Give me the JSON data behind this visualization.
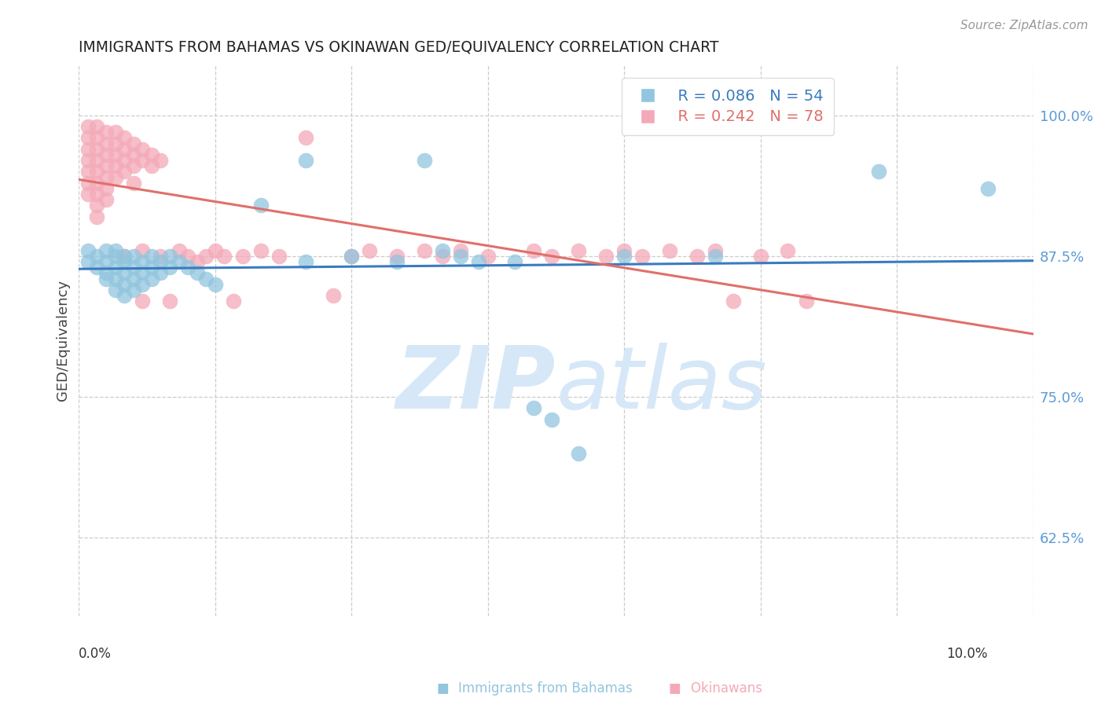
{
  "title": "IMMIGRANTS FROM BAHAMAS VS OKINAWAN GED/EQUIVALENCY CORRELATION CHART",
  "source": "Source: ZipAtlas.com",
  "ylabel": "GED/Equivalency",
  "yticks": [
    0.625,
    0.75,
    0.875,
    1.0
  ],
  "ytick_labels": [
    "62.5%",
    "75.0%",
    "87.5%",
    "100.0%"
  ],
  "xlim": [
    0.0,
    0.105
  ],
  "ylim": [
    0.555,
    1.045
  ],
  "legend_r_blue": "R = 0.086",
  "legend_n_blue": "N = 54",
  "legend_r_pink": "R = 0.242",
  "legend_n_pink": "N = 78",
  "blue_color": "#92c5de",
  "pink_color": "#f4a9b8",
  "blue_line_color": "#3a7bbf",
  "pink_line_color": "#e0706a",
  "watermark_zip": "ZIP",
  "watermark_atlas": "atlas",
  "watermark_color": "#d6e8f7",
  "axis_label_color": "#5b9bd5",
  "title_color": "#222222",
  "grid_color": "#cccccc",
  "blue_scatter": [
    [
      0.001,
      0.88
    ],
    [
      0.001,
      0.87
    ],
    [
      0.002,
      0.875
    ],
    [
      0.002,
      0.865
    ],
    [
      0.003,
      0.88
    ],
    [
      0.003,
      0.87
    ],
    [
      0.003,
      0.86
    ],
    [
      0.003,
      0.855
    ],
    [
      0.004,
      0.88
    ],
    [
      0.004,
      0.875
    ],
    [
      0.004,
      0.865
    ],
    [
      0.004,
      0.855
    ],
    [
      0.004,
      0.845
    ],
    [
      0.005,
      0.875
    ],
    [
      0.005,
      0.87
    ],
    [
      0.005,
      0.86
    ],
    [
      0.005,
      0.85
    ],
    [
      0.005,
      0.84
    ],
    [
      0.006,
      0.875
    ],
    [
      0.006,
      0.865
    ],
    [
      0.006,
      0.855
    ],
    [
      0.006,
      0.845
    ],
    [
      0.007,
      0.87
    ],
    [
      0.007,
      0.86
    ],
    [
      0.007,
      0.85
    ],
    [
      0.008,
      0.875
    ],
    [
      0.008,
      0.865
    ],
    [
      0.008,
      0.855
    ],
    [
      0.009,
      0.87
    ],
    [
      0.009,
      0.86
    ],
    [
      0.01,
      0.875
    ],
    [
      0.01,
      0.865
    ],
    [
      0.011,
      0.87
    ],
    [
      0.012,
      0.865
    ],
    [
      0.013,
      0.86
    ],
    [
      0.014,
      0.855
    ],
    [
      0.015,
      0.85
    ],
    [
      0.02,
      0.92
    ],
    [
      0.025,
      0.96
    ],
    [
      0.025,
      0.87
    ],
    [
      0.03,
      0.875
    ],
    [
      0.035,
      0.87
    ],
    [
      0.038,
      0.96
    ],
    [
      0.04,
      0.88
    ],
    [
      0.042,
      0.875
    ],
    [
      0.044,
      0.87
    ],
    [
      0.048,
      0.87
    ],
    [
      0.05,
      0.74
    ],
    [
      0.052,
      0.73
    ],
    [
      0.055,
      0.7
    ],
    [
      0.06,
      0.875
    ],
    [
      0.07,
      0.875
    ],
    [
      0.088,
      0.95
    ],
    [
      0.1,
      0.935
    ]
  ],
  "pink_scatter": [
    [
      0.001,
      0.99
    ],
    [
      0.001,
      0.98
    ],
    [
      0.001,
      0.97
    ],
    [
      0.001,
      0.96
    ],
    [
      0.001,
      0.95
    ],
    [
      0.001,
      0.94
    ],
    [
      0.001,
      0.93
    ],
    [
      0.002,
      0.99
    ],
    [
      0.002,
      0.98
    ],
    [
      0.002,
      0.97
    ],
    [
      0.002,
      0.96
    ],
    [
      0.002,
      0.95
    ],
    [
      0.002,
      0.94
    ],
    [
      0.002,
      0.93
    ],
    [
      0.002,
      0.92
    ],
    [
      0.002,
      0.91
    ],
    [
      0.003,
      0.985
    ],
    [
      0.003,
      0.975
    ],
    [
      0.003,
      0.965
    ],
    [
      0.003,
      0.955
    ],
    [
      0.003,
      0.945
    ],
    [
      0.003,
      0.935
    ],
    [
      0.003,
      0.925
    ],
    [
      0.004,
      0.985
    ],
    [
      0.004,
      0.975
    ],
    [
      0.004,
      0.965
    ],
    [
      0.004,
      0.955
    ],
    [
      0.004,
      0.945
    ],
    [
      0.005,
      0.98
    ],
    [
      0.005,
      0.97
    ],
    [
      0.005,
      0.96
    ],
    [
      0.005,
      0.95
    ],
    [
      0.005,
      0.875
    ],
    [
      0.006,
      0.975
    ],
    [
      0.006,
      0.965
    ],
    [
      0.006,
      0.955
    ],
    [
      0.006,
      0.94
    ],
    [
      0.007,
      0.97
    ],
    [
      0.007,
      0.96
    ],
    [
      0.007,
      0.88
    ],
    [
      0.007,
      0.835
    ],
    [
      0.008,
      0.965
    ],
    [
      0.008,
      0.955
    ],
    [
      0.009,
      0.96
    ],
    [
      0.009,
      0.875
    ],
    [
      0.01,
      0.835
    ],
    [
      0.011,
      0.88
    ],
    [
      0.012,
      0.875
    ],
    [
      0.013,
      0.87
    ],
    [
      0.014,
      0.875
    ],
    [
      0.015,
      0.88
    ],
    [
      0.016,
      0.875
    ],
    [
      0.017,
      0.835
    ],
    [
      0.018,
      0.875
    ],
    [
      0.02,
      0.88
    ],
    [
      0.022,
      0.875
    ],
    [
      0.025,
      0.98
    ],
    [
      0.028,
      0.84
    ],
    [
      0.03,
      0.875
    ],
    [
      0.032,
      0.88
    ],
    [
      0.035,
      0.875
    ],
    [
      0.038,
      0.88
    ],
    [
      0.04,
      0.875
    ],
    [
      0.042,
      0.88
    ],
    [
      0.045,
      0.875
    ],
    [
      0.05,
      0.88
    ],
    [
      0.052,
      0.875
    ],
    [
      0.055,
      0.88
    ],
    [
      0.058,
      0.875
    ],
    [
      0.06,
      0.88
    ],
    [
      0.062,
      0.875
    ],
    [
      0.065,
      0.88
    ],
    [
      0.068,
      0.875
    ],
    [
      0.07,
      0.88
    ],
    [
      0.072,
      0.835
    ],
    [
      0.075,
      0.875
    ],
    [
      0.078,
      0.88
    ],
    [
      0.08,
      0.835
    ]
  ]
}
